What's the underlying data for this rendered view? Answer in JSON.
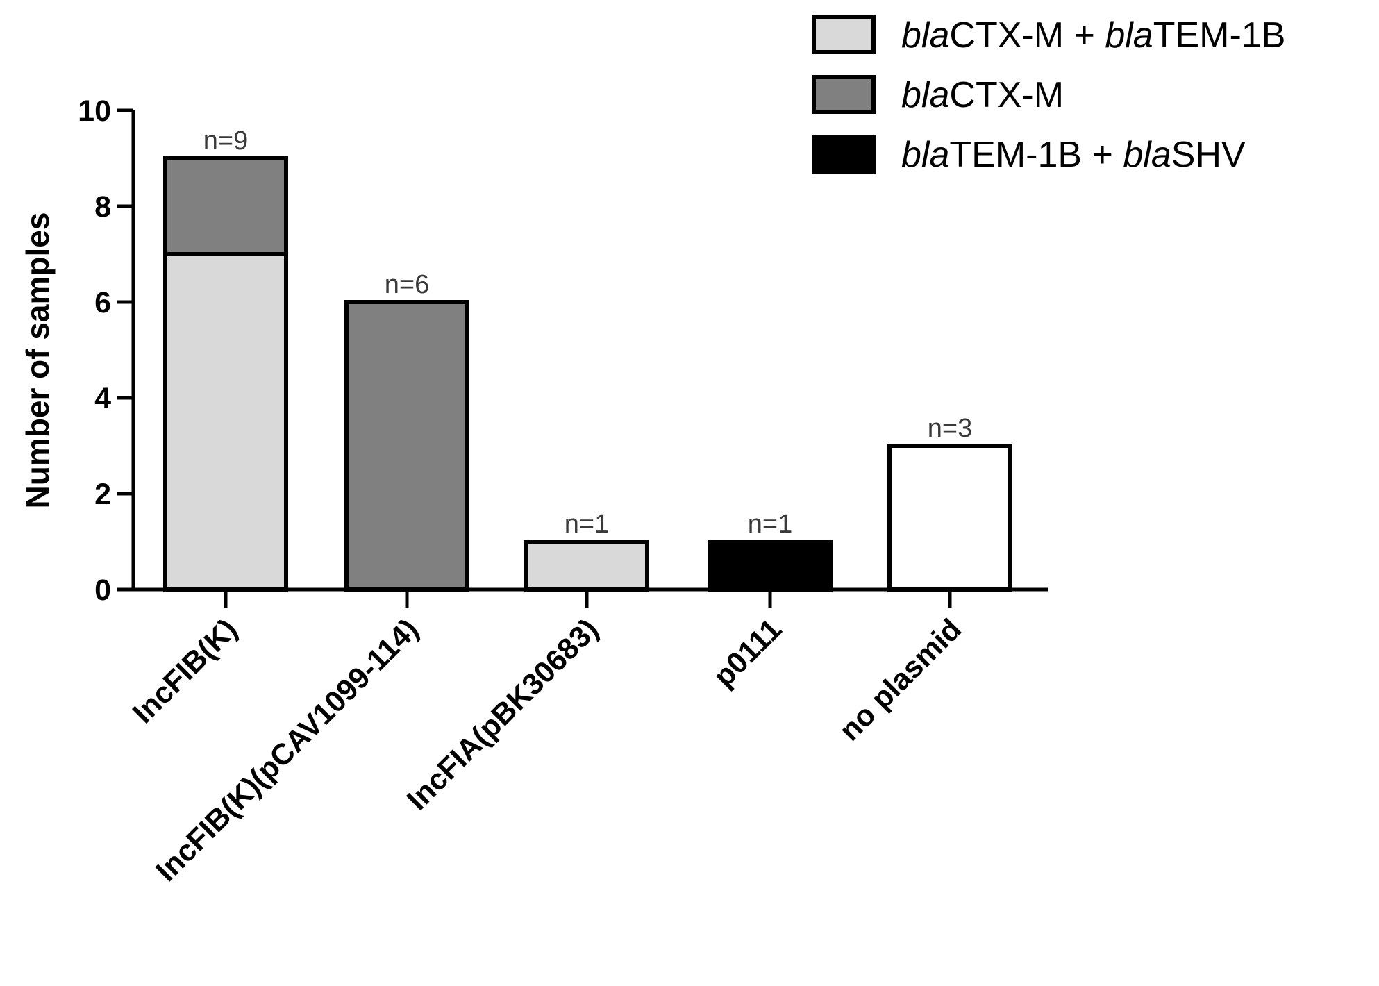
{
  "chart_data": {
    "type": "bar",
    "stacked": true,
    "title": "",
    "xlabel": "",
    "ylabel": "Number of samples",
    "ylim": [
      0,
      10
    ],
    "yticks": [
      "0",
      "2",
      "4",
      "6",
      "8",
      "10"
    ],
    "grid": false,
    "legend_position": "top-right",
    "categories": [
      "IncFIB(K)",
      "IncFIB(K)(pCAV1099-114)",
      "IncFIA(pBK30683)",
      "p0111",
      "no plasmid"
    ],
    "series": [
      {
        "name_parts": [
          {
            "text": "bla",
            "italic": true
          },
          {
            "text": "CTX-M + ",
            "italic": false
          },
          {
            "text": "bla",
            "italic": true
          },
          {
            "text": "TEM-1B",
            "italic": false
          }
        ],
        "values": [
          7,
          0,
          1,
          0,
          0
        ],
        "color": "#d9d9d9"
      },
      {
        "name_parts": [
          {
            "text": "bla",
            "italic": true
          },
          {
            "text": "CTX-M",
            "italic": false
          }
        ],
        "values": [
          2,
          6,
          0,
          0,
          0
        ],
        "color": "#808080"
      },
      {
        "name_parts": [
          {
            "text": "bla",
            "italic": true
          },
          {
            "text": "TEM-1B + ",
            "italic": false
          },
          {
            "text": "bla",
            "italic": true
          },
          {
            "text": "SHV",
            "italic": false
          }
        ],
        "values": [
          0,
          0,
          0,
          1,
          0
        ],
        "color": "#000000"
      },
      {
        "values": [
          0,
          0,
          0,
          0,
          3
        ],
        "color": "#ffffff",
        "in_legend": false
      }
    ],
    "annotations": [
      "n=9",
      "n=6",
      "n=1",
      "n=1",
      "n=3"
    ]
  }
}
